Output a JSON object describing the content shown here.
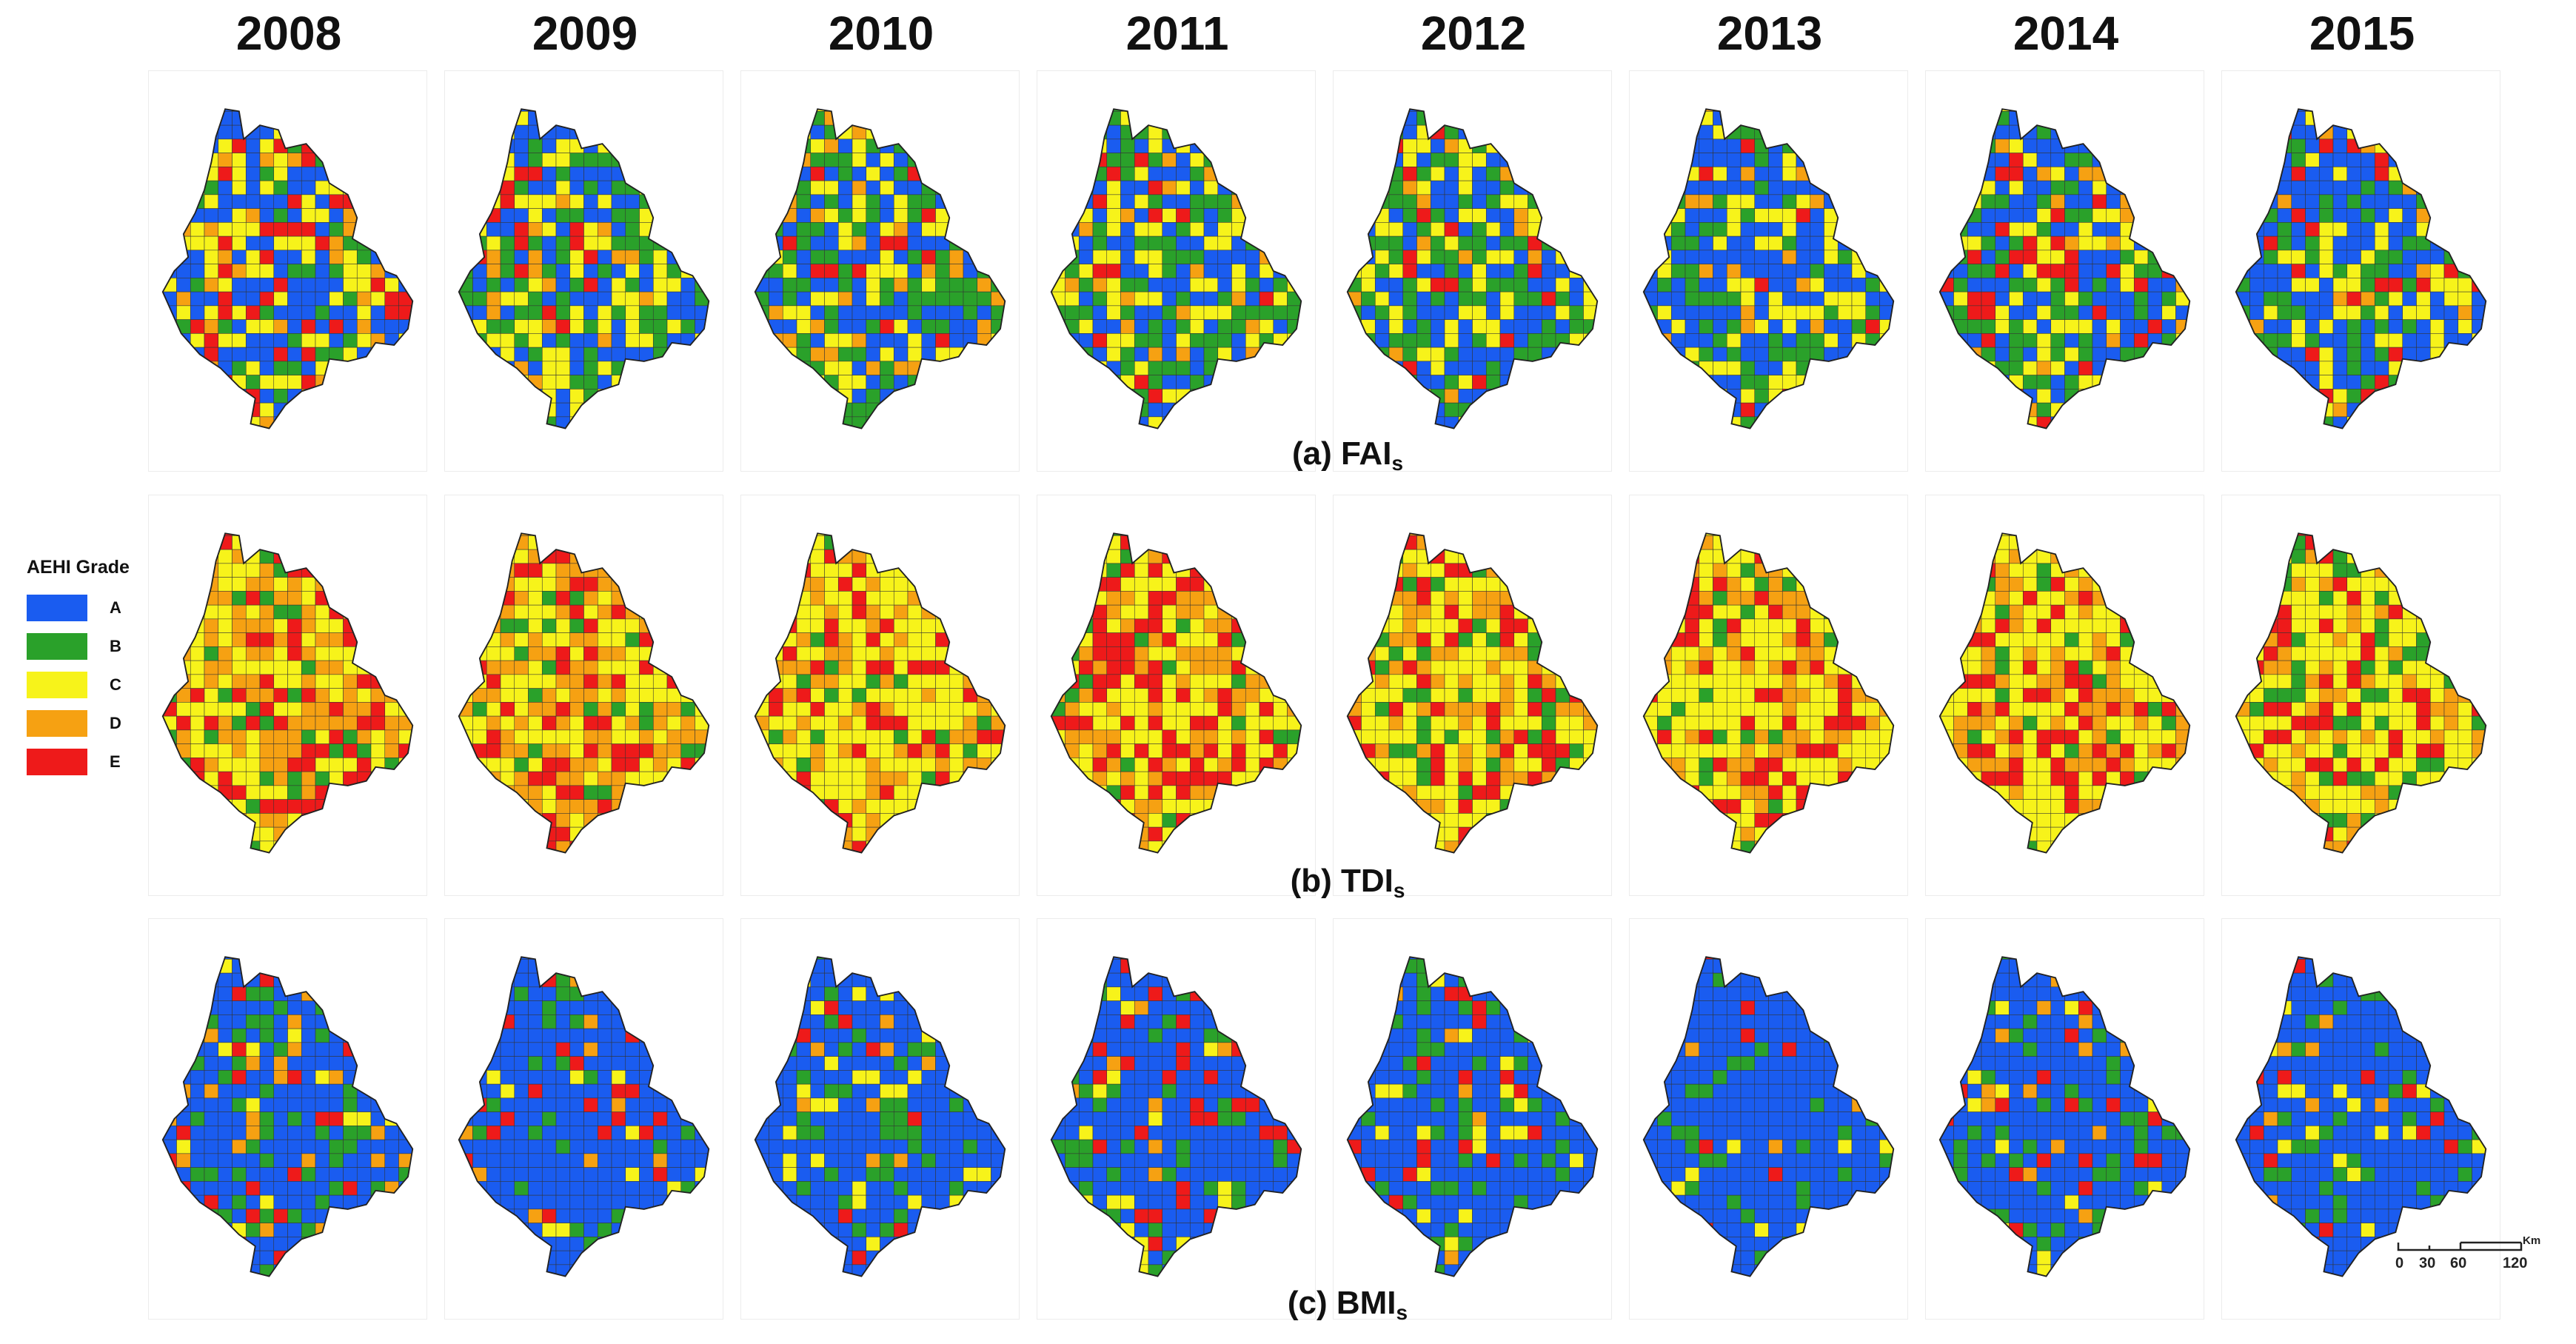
{
  "years": [
    "2008",
    "2009",
    "2010",
    "2011",
    "2012",
    "2013",
    "2014",
    "2015"
  ],
  "rows": [
    {
      "label": "(a) FAI",
      "subscript": "s",
      "maps": [
        {
          "A": 0.38,
          "B": 0.12,
          "C": 0.3,
          "D": 0.1,
          "E": 0.1
        },
        {
          "A": 0.3,
          "B": 0.3,
          "C": 0.28,
          "D": 0.07,
          "E": 0.05
        },
        {
          "A": 0.28,
          "B": 0.34,
          "C": 0.24,
          "D": 0.1,
          "E": 0.04
        },
        {
          "A": 0.3,
          "B": 0.32,
          "C": 0.26,
          "D": 0.08,
          "E": 0.04
        },
        {
          "A": 0.35,
          "B": 0.3,
          "C": 0.22,
          "D": 0.08,
          "E": 0.05
        },
        {
          "A": 0.4,
          "B": 0.26,
          "C": 0.23,
          "D": 0.07,
          "E": 0.04
        },
        {
          "A": 0.36,
          "B": 0.26,
          "C": 0.22,
          "D": 0.06,
          "E": 0.1
        },
        {
          "A": 0.42,
          "B": 0.24,
          "C": 0.22,
          "D": 0.06,
          "E": 0.06
        }
      ]
    },
    {
      "label": "(b) TDI",
      "subscript": "s",
      "maps": [
        {
          "A": 0.0,
          "B": 0.1,
          "C": 0.38,
          "D": 0.3,
          "E": 0.22
        },
        {
          "A": 0.0,
          "B": 0.08,
          "C": 0.42,
          "D": 0.3,
          "E": 0.2
        },
        {
          "A": 0.0,
          "B": 0.08,
          "C": 0.52,
          "D": 0.22,
          "E": 0.18
        },
        {
          "A": 0.0,
          "B": 0.08,
          "C": 0.44,
          "D": 0.22,
          "E": 0.26
        },
        {
          "A": 0.0,
          "B": 0.14,
          "C": 0.46,
          "D": 0.22,
          "E": 0.18
        },
        {
          "A": 0.0,
          "B": 0.08,
          "C": 0.5,
          "D": 0.26,
          "E": 0.16
        },
        {
          "A": 0.0,
          "B": 0.08,
          "C": 0.46,
          "D": 0.28,
          "E": 0.18
        },
        {
          "A": 0.0,
          "B": 0.16,
          "C": 0.54,
          "D": 0.16,
          "E": 0.14
        }
      ]
    },
    {
      "label": "(c) BMI",
      "subscript": "s",
      "maps": [
        {
          "A": 0.6,
          "B": 0.18,
          "C": 0.08,
          "D": 0.07,
          "E": 0.07
        },
        {
          "A": 0.74,
          "B": 0.1,
          "C": 0.06,
          "D": 0.04,
          "E": 0.06
        },
        {
          "A": 0.7,
          "B": 0.16,
          "C": 0.08,
          "D": 0.02,
          "E": 0.04
        },
        {
          "A": 0.66,
          "B": 0.18,
          "C": 0.06,
          "D": 0.02,
          "E": 0.08
        },
        {
          "A": 0.68,
          "B": 0.16,
          "C": 0.06,
          "D": 0.04,
          "E": 0.06
        },
        {
          "A": 0.8,
          "B": 0.12,
          "C": 0.04,
          "D": 0.01,
          "E": 0.03
        },
        {
          "A": 0.66,
          "B": 0.16,
          "C": 0.06,
          "D": 0.04,
          "E": 0.08
        },
        {
          "A": 0.74,
          "B": 0.12,
          "C": 0.06,
          "D": 0.02,
          "E": 0.06
        }
      ]
    }
  ],
  "legend": {
    "title": "AEHI Grade",
    "items": [
      {
        "label": "A",
        "color": "#1a5cf0"
      },
      {
        "label": "B",
        "color": "#2aa12a"
      },
      {
        "label": "C",
        "color": "#f7f31a"
      },
      {
        "label": "D",
        "color": "#f6a112"
      },
      {
        "label": "E",
        "color": "#ee1a1a"
      }
    ]
  },
  "scale_bar": {
    "unit": "Km",
    "ticks": [
      "0",
      "30",
      "60",
      "120"
    ]
  }
}
